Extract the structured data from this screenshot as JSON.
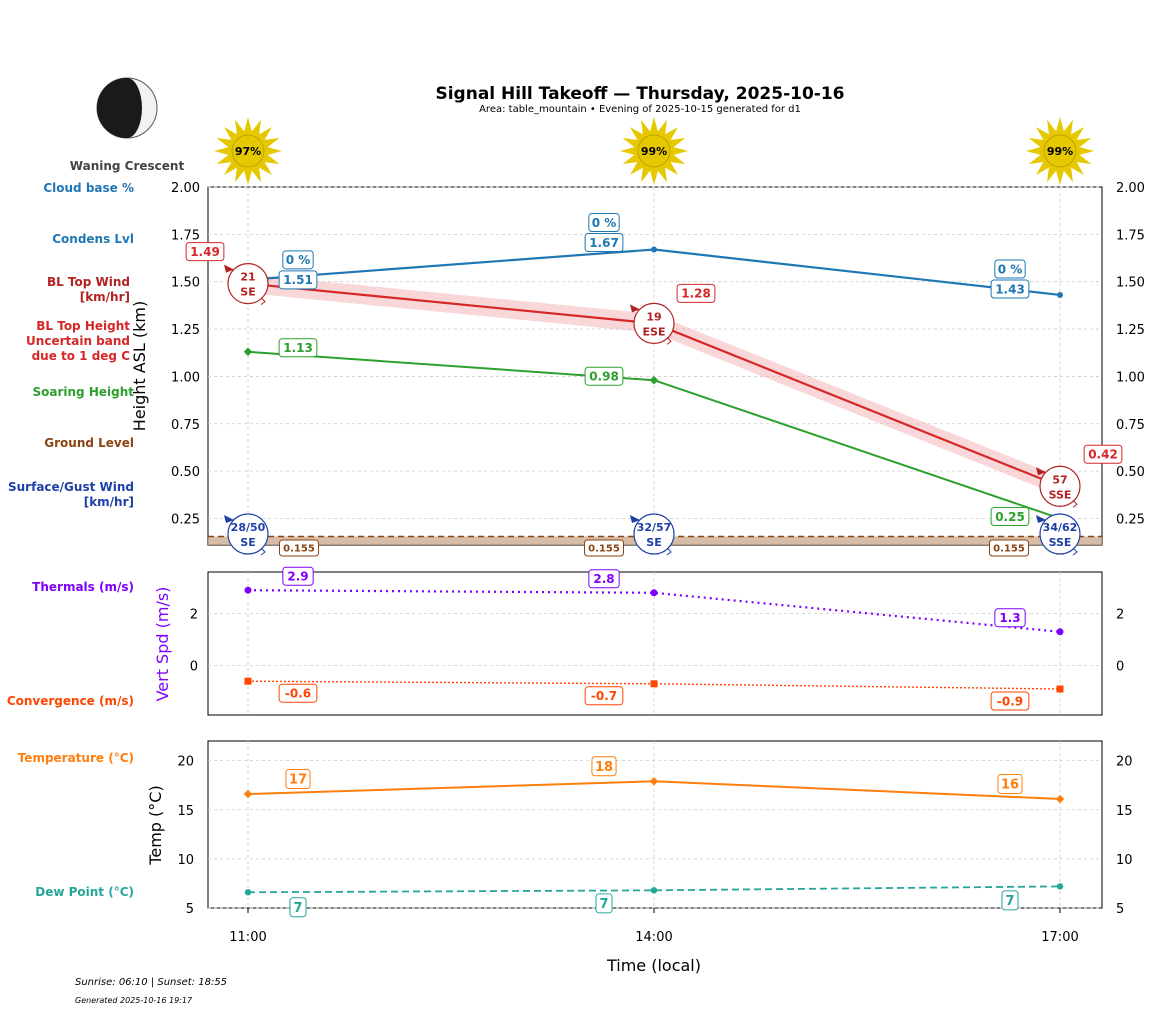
{
  "header": {
    "title": "Signal Hill Takeoff — Thursday, 2025-10-16",
    "subtitle": "Area: table_mountain • Evening of 2025-10-15 generated for d1",
    "moon_label": "Waning Crescent"
  },
  "footer": {
    "sun_times": "Sunrise: 06:10 | Sunset: 18:55",
    "generated": "Generated 2025-10-16 19:17"
  },
  "colors": {
    "cloud": "#1f77b4",
    "bl_wind": "#b22222",
    "bl_top": "#d62728",
    "soaring": "#2ca02c",
    "ground": "#8b4513",
    "surface": "#1f3fa8",
    "thermals": "#7f00ff",
    "convergence": "#ff4500",
    "temperature": "#ff7f0e",
    "dew": "#26a69a",
    "sun": "#e6c800"
  },
  "row_labels": {
    "cloud_base": "Cloud base %",
    "condens": "Condens Lvl",
    "bl_wind_1": "BL Top Wind",
    "bl_wind_2": "[km/hr]",
    "bl_top_1": "BL Top Height",
    "bl_top_2": "Uncertain band",
    "bl_top_3": "due to 1 deg C",
    "soaring": "Soaring Height",
    "ground": "Ground Level",
    "surface_1": "Surface/Gust Wind",
    "surface_2": "[km/hr]",
    "thermals": "Thermals (m/s)",
    "convergence": "Convergence (m/s)",
    "temperature": "Temperature (°C)",
    "dew": "Dew Point (°C)"
  },
  "chart_data": [
    {
      "type": "line",
      "name": "height",
      "x": [
        "11:00",
        "14:00",
        "17:00"
      ],
      "ylabel": "Height ASL (km)",
      "ylim": [
        0.11,
        2.0
      ],
      "yticks": [
        "0.25",
        "0.50",
        "0.75",
        "1.00",
        "1.25",
        "1.50",
        "1.75",
        "2.00"
      ],
      "grid": true,
      "sun_percent": [
        "97%",
        "99%",
        "99%"
      ],
      "series": [
        {
          "key": "condens",
          "values": [
            1.51,
            1.67,
            1.43
          ],
          "labels": [
            "1.51",
            "1.67",
            "1.43"
          ],
          "cloud_pct": [
            "0 %",
            "0 %",
            "0 %"
          ]
        },
        {
          "key": "bl_top",
          "values": [
            1.49,
            1.28,
            0.42
          ],
          "labels": [
            "1.49",
            "1.28",
            "0.42"
          ],
          "band": 0.05
        },
        {
          "key": "soaring",
          "values": [
            1.13,
            0.98,
            0.25
          ],
          "labels": [
            "1.13",
            "0.98",
            "0.25"
          ]
        },
        {
          "key": "ground",
          "values": [
            0.155,
            0.155,
            0.155
          ],
          "labels": [
            "0.155",
            "0.155",
            "0.155"
          ]
        }
      ],
      "bl_wind": [
        {
          "speed": "21",
          "dir": "SE",
          "y": 1.49
        },
        {
          "speed": "19",
          "dir": "ESE",
          "y": 1.28
        },
        {
          "speed": "57",
          "dir": "SSE",
          "y": 0.42
        }
      ],
      "surface_wind": [
        {
          "speed": "28/50",
          "dir": "SE"
        },
        {
          "speed": "32/57",
          "dir": "SE"
        },
        {
          "speed": "34/62",
          "dir": "SSE"
        }
      ]
    },
    {
      "type": "line",
      "name": "vertical",
      "x": [
        "11:00",
        "14:00",
        "17:00"
      ],
      "ylabel": "Vert Spd (m/s)",
      "ylim": [
        -1.9,
        3.6
      ],
      "yticks": [
        "0",
        "2"
      ],
      "series": [
        {
          "key": "thermals",
          "values": [
            2.9,
            2.8,
            1.3
          ],
          "labels": [
            "2.9",
            "2.8",
            "1.3"
          ]
        },
        {
          "key": "convergence",
          "values": [
            -0.6,
            -0.7,
            -0.9
          ],
          "labels": [
            "-0.6",
            "-0.7",
            "-0.9"
          ]
        }
      ]
    },
    {
      "type": "line",
      "name": "temperature",
      "x": [
        "11:00",
        "14:00",
        "17:00"
      ],
      "xlabel": "Time (local)",
      "ylabel": "Temp (°C)",
      "ylim": [
        5,
        22
      ],
      "yticks": [
        "5",
        "10",
        "15",
        "20"
      ],
      "series": [
        {
          "key": "temperature",
          "values": [
            16.6,
            17.9,
            16.1
          ],
          "labels": [
            "17",
            "18",
            "16"
          ]
        },
        {
          "key": "dew",
          "values": [
            6.6,
            6.8,
            7.2
          ],
          "labels": [
            "7",
            "7",
            "7"
          ]
        }
      ]
    }
  ]
}
